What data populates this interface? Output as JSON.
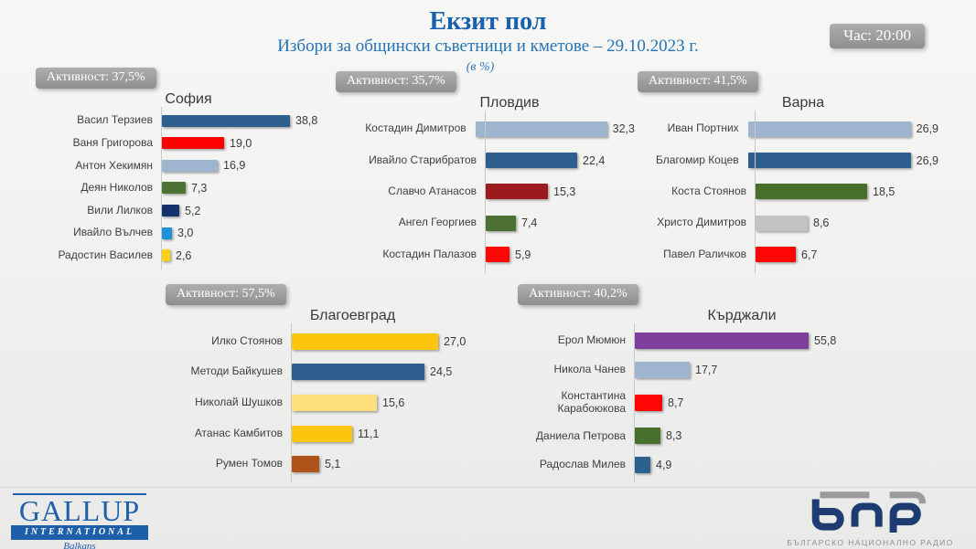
{
  "header": {
    "title": "Екзит пол",
    "subtitle": "Избори за общински съветници и кметове – 29.10.2023 г.",
    "unit_note": "(в %)",
    "time_badge": "Час: 20:00"
  },
  "colors": {
    "title_blue": "#1a61ad",
    "subtitle_blue": "#2373b5",
    "badge_gray": "#9a9a9a",
    "axis_gray": "#c7c7c5"
  },
  "chart_data": [
    {
      "type": "bar",
      "orientation": "horizontal",
      "title": "София",
      "turnout_label": "Активност: 37,5%",
      "turnout_pct": 37.5,
      "categories": [
        "Васил Терзиев",
        "Ваня Григорова",
        "Антон Хекимян",
        "Деян Николов",
        "Вили Лилков",
        "Ивайло Вълчев",
        "Радостин Василев"
      ],
      "values": [
        38.8,
        19.0,
        16.9,
        7.3,
        5.2,
        3.0,
        2.6
      ],
      "value_labels": [
        "38,8",
        "19,0",
        "16,9",
        "7,3",
        "5,2",
        "3,0",
        "2,6"
      ],
      "bar_colors": [
        "#2d5e8d",
        "#fe0000",
        "#9fb4cf",
        "#4e7233",
        "#15316e",
        "#1f8fd8",
        "#fdd017"
      ],
      "xlim": [
        0,
        40
      ],
      "grid": false,
      "legend": false
    },
    {
      "type": "bar",
      "orientation": "horizontal",
      "title": "Пловдив",
      "turnout_label": "Активност: 35,7%",
      "turnout_pct": 35.7,
      "categories": [
        "Костадин Димитров",
        "Ивайло Старибратов",
        "Славчо Атанасов",
        "Ангел Георгиев",
        "Костадин Палазов"
      ],
      "values": [
        32.3,
        22.4,
        15.3,
        7.4,
        5.9
      ],
      "value_labels": [
        "32,3",
        "22,4",
        "15,3",
        "7,4",
        "5,9"
      ],
      "bar_colors": [
        "#9fb4cf",
        "#2d5e8d",
        "#9c1a1d",
        "#4c7031",
        "#fe0606"
      ],
      "xlim": [
        0,
        35
      ],
      "grid": false,
      "legend": false
    },
    {
      "type": "bar",
      "orientation": "horizontal",
      "title": "Варна",
      "turnout_label": "Активност: 41,5%",
      "turnout_pct": 41.5,
      "categories": [
        "Иван Портних",
        "Благомир Коцев",
        "Коста Стоянов",
        "Христо Димитров",
        "Павел Раличков"
      ],
      "values": [
        26.9,
        26.9,
        18.5,
        8.6,
        6.7
      ],
      "value_labels": [
        "26,9",
        "26,9",
        "18,5",
        "8,6",
        "6,7"
      ],
      "bar_colors": [
        "#9fb4cf",
        "#2d5e8d",
        "#48702c",
        "#c2c2c2",
        "#fe0606"
      ],
      "xlim": [
        0,
        30
      ],
      "grid": false,
      "legend": false
    },
    {
      "type": "bar",
      "orientation": "horizontal",
      "title": "Благоевград",
      "turnout_label": "Активност: 57,5%",
      "turnout_pct": 57.5,
      "categories": [
        "Илко Стоянов",
        "Методи Байкушев",
        "Николай Шушков",
        "Атанас Камбитов",
        "Румен Томов"
      ],
      "values": [
        27.0,
        24.5,
        15.6,
        11.1,
        5.1
      ],
      "value_labels": [
        "27,0",
        "24,5",
        "15,6",
        "11,1",
        "5,1"
      ],
      "bar_colors": [
        "#fcc60d",
        "#2d5e8d",
        "#fbe07d",
        "#fcc60d",
        "#ae5319"
      ],
      "xlim": [
        0,
        30
      ],
      "grid": false,
      "legend": false
    },
    {
      "type": "bar",
      "orientation": "horizontal",
      "title": "Кърджали",
      "turnout_label": "Активност: 40,2%",
      "turnout_pct": 40.2,
      "categories": [
        "Ерол Мюмюн",
        "Никола Чанев",
        "Константина Карабоюкова",
        "Даниела Петрова",
        "Радослав Милев"
      ],
      "values": [
        55.8,
        17.7,
        8.7,
        8.3,
        4.9
      ],
      "value_labels": [
        "55,8",
        "17,7",
        "8,7",
        "8,3",
        "4,9"
      ],
      "bar_colors": [
        "#7e3f9d",
        "#9fb4cf",
        "#fe0606",
        "#48702c",
        "#2c618e"
      ],
      "xlim": [
        0,
        60
      ],
      "grid": false,
      "legend": false
    }
  ],
  "footer": {
    "gallup_logo": {
      "name": "GALLUP",
      "line2": "INTERNATIONAL",
      "line3": "Balkans"
    },
    "bnr_logo": {
      "text": "бнр",
      "caption": "БЪЛГАРСКО НАЦИОНАЛНО РАДИО"
    }
  }
}
